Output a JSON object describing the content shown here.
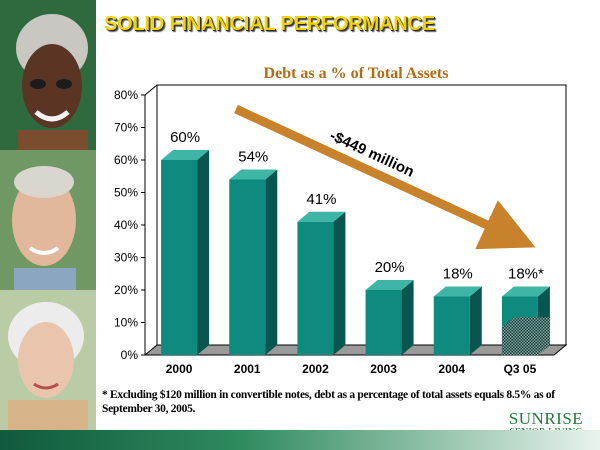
{
  "slide": {
    "title": "SOLID FINANCIAL PERFORMANCE",
    "footnote": "* Excluding $120 million in convertible notes, debt as a percentage of total assets equals 8.5% as of September 30, 2005."
  },
  "brand": {
    "name": "SUNRISE",
    "tagline": "SENIOR LIVING"
  },
  "colors": {
    "title": "#f2d400",
    "bar_front": "#0f8a7e",
    "bar_side": "#08564f",
    "bar_top": "#3fb5a8",
    "arrow": "#c8822c",
    "brand": "#1f7a3c"
  },
  "chart_data": {
    "type": "bar",
    "title": "Debt as a % of Total Assets",
    "categories": [
      "2000",
      "2001",
      "2002",
      "2003",
      "2004",
      "Q3 05"
    ],
    "values": [
      60,
      54,
      41,
      20,
      18,
      18
    ],
    "value_labels": [
      "60%",
      "54%",
      "41%",
      "20%",
      "18%",
      "18%*"
    ],
    "hatched_segment": {
      "category": "Q3 05",
      "value": 8.5
    },
    "ylim": [
      0,
      80
    ],
    "yticks": [
      0,
      10,
      20,
      30,
      40,
      50,
      60,
      70,
      80
    ],
    "ytick_labels": [
      "0%",
      "10%",
      "20%",
      "30%",
      "40%",
      "50%",
      "60%",
      "70%",
      "80%"
    ],
    "xlabel": "",
    "ylabel": "",
    "annotation": "-$449 million",
    "grid": false
  }
}
